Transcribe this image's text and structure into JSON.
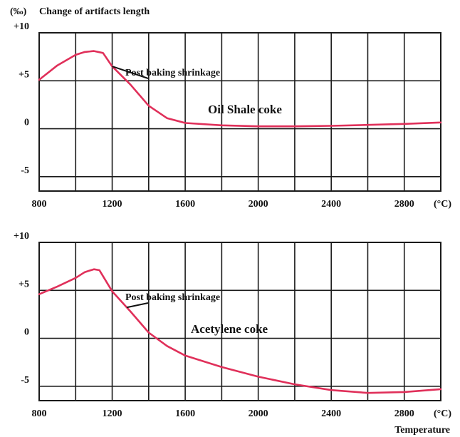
{
  "header": {
    "unit": "(‰)",
    "title": "Change of artifacts length"
  },
  "footer": {
    "xlabel": "Temperature"
  },
  "chart_data": [
    {
      "type": "line",
      "name": "Oil Shale coke",
      "annotation": "Post baking shrinkage",
      "xunit": "(°C)",
      "xlim": [
        800,
        3000
      ],
      "ylim": [
        -6.5,
        10
      ],
      "xticks": [
        800,
        1200,
        1600,
        2000,
        2400,
        2800
      ],
      "yticks": [
        {
          "value": 10,
          "label": "+10"
        },
        {
          "value": 5,
          "label": "+5"
        },
        {
          "value": 0,
          "label": "0"
        },
        {
          "value": -5,
          "label": "-5"
        }
      ],
      "grid": true,
      "series": [
        {
          "x": [
            800,
            900,
            1000,
            1050,
            1100,
            1150,
            1200,
            1300,
            1400,
            1500,
            1600,
            1800,
            2000,
            2200,
            2400,
            2600,
            2800,
            3000
          ],
          "y": [
            5.1,
            6.6,
            7.7,
            8.0,
            8.1,
            7.9,
            6.5,
            4.6,
            2.4,
            1.1,
            0.6,
            0.35,
            0.25,
            0.25,
            0.3,
            0.4,
            0.5,
            0.65
          ]
        }
      ]
    },
    {
      "type": "line",
      "name": "Acetylene coke",
      "annotation": "Post baking shrinkage",
      "xunit": "(°C)",
      "xlim": [
        800,
        3000
      ],
      "ylim": [
        -6.5,
        10
      ],
      "xticks": [
        800,
        1200,
        1600,
        2000,
        2400,
        2800
      ],
      "yticks": [
        {
          "value": 10,
          "label": "+10"
        },
        {
          "value": 5,
          "label": "+5"
        },
        {
          "value": 0,
          "label": "0"
        },
        {
          "value": -5,
          "label": "-5"
        }
      ],
      "grid": true,
      "series": [
        {
          "x": [
            800,
            900,
            1000,
            1050,
            1100,
            1130,
            1200,
            1300,
            1400,
            1500,
            1600,
            1800,
            2000,
            2200,
            2400,
            2600,
            2800,
            3000
          ],
          "y": [
            4.6,
            5.4,
            6.3,
            6.9,
            7.2,
            7.1,
            4.9,
            2.8,
            0.6,
            -0.8,
            -1.8,
            -3.0,
            -4.0,
            -4.8,
            -5.4,
            -5.7,
            -5.6,
            -5.3
          ]
        }
      ]
    }
  ]
}
